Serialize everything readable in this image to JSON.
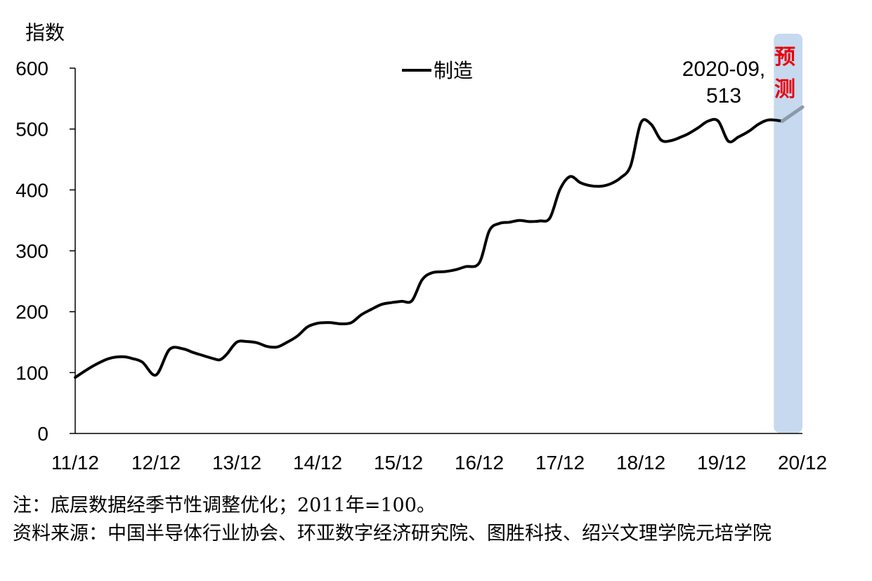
{
  "chart_data": {
    "type": "line",
    "ylabel": "指数",
    "ylim": [
      0,
      600
    ],
    "yticks": [
      0,
      100,
      200,
      300,
      400,
      500,
      600
    ],
    "x_tick_labels": [
      "11/12",
      "12/12",
      "13/12",
      "14/12",
      "15/12",
      "16/12",
      "17/12",
      "18/12",
      "19/12",
      "20/12"
    ],
    "x_unit": "months since 2011-12",
    "series": [
      {
        "name": "制造",
        "color": "#000000",
        "x": [
          0,
          1.5,
          3,
          5,
          7,
          8.5,
          10,
          12,
          14,
          16,
          17.5,
          19,
          20.5,
          21.5,
          22.5,
          24,
          25.5,
          27,
          28.5,
          30,
          31.5,
          33,
          34.5,
          36,
          37,
          38,
          39.5,
          41,
          42.5,
          44,
          45.5,
          47,
          48.5,
          50,
          51.5,
          53,
          55,
          56.5,
          58,
          60,
          61.5,
          63,
          64.5,
          66,
          67.5,
          69,
          70.5,
          72,
          73.5,
          75,
          76.5,
          78,
          79.5,
          81,
          82.5,
          84,
          85.5,
          87,
          88.5,
          90,
          91,
          92.5,
          94,
          95.5,
          97,
          98.5,
          100,
          101.5,
          103,
          105
        ],
        "values": [
          92,
          103,
          113,
          123,
          126,
          123,
          117,
          96,
          138,
          139,
          133,
          128,
          123,
          121,
          130,
          150,
          151,
          149,
          143,
          142,
          150,
          160,
          175,
          181,
          182,
          182,
          180,
          182,
          195,
          204,
          212,
          215,
          217,
          218,
          252,
          264,
          266,
          269,
          274,
          280,
          333,
          345,
          347,
          350,
          348,
          349,
          354,
          401,
          422,
          412,
          407,
          406,
          410,
          420,
          440,
          510,
          508,
          482,
          481,
          487,
          492,
          502,
          513,
          513,
          480,
          487,
          496,
          508,
          515,
          513
        ]
      },
      {
        "name": "预测",
        "color": "#8c9aa8",
        "x": [
          105,
          108
        ],
        "values": [
          513,
          536
        ]
      }
    ],
    "forecast_band": {
      "label": "预测",
      "from_x": 104.8,
      "to_x": 108,
      "color": "#c6d9ef"
    },
    "annotation": {
      "line1": "2020-09,",
      "line2": "513",
      "x": 105,
      "y": 513
    },
    "legend": {
      "label": "制造",
      "position": "top-center"
    }
  },
  "notes": {
    "line1": "注：底层数据经季节性调整优化；2011年=100。",
    "line2": "资料来源：中国半导体行业协会、环亚数字经济研究院、图胜科技、绍兴文理学院元培学院"
  }
}
